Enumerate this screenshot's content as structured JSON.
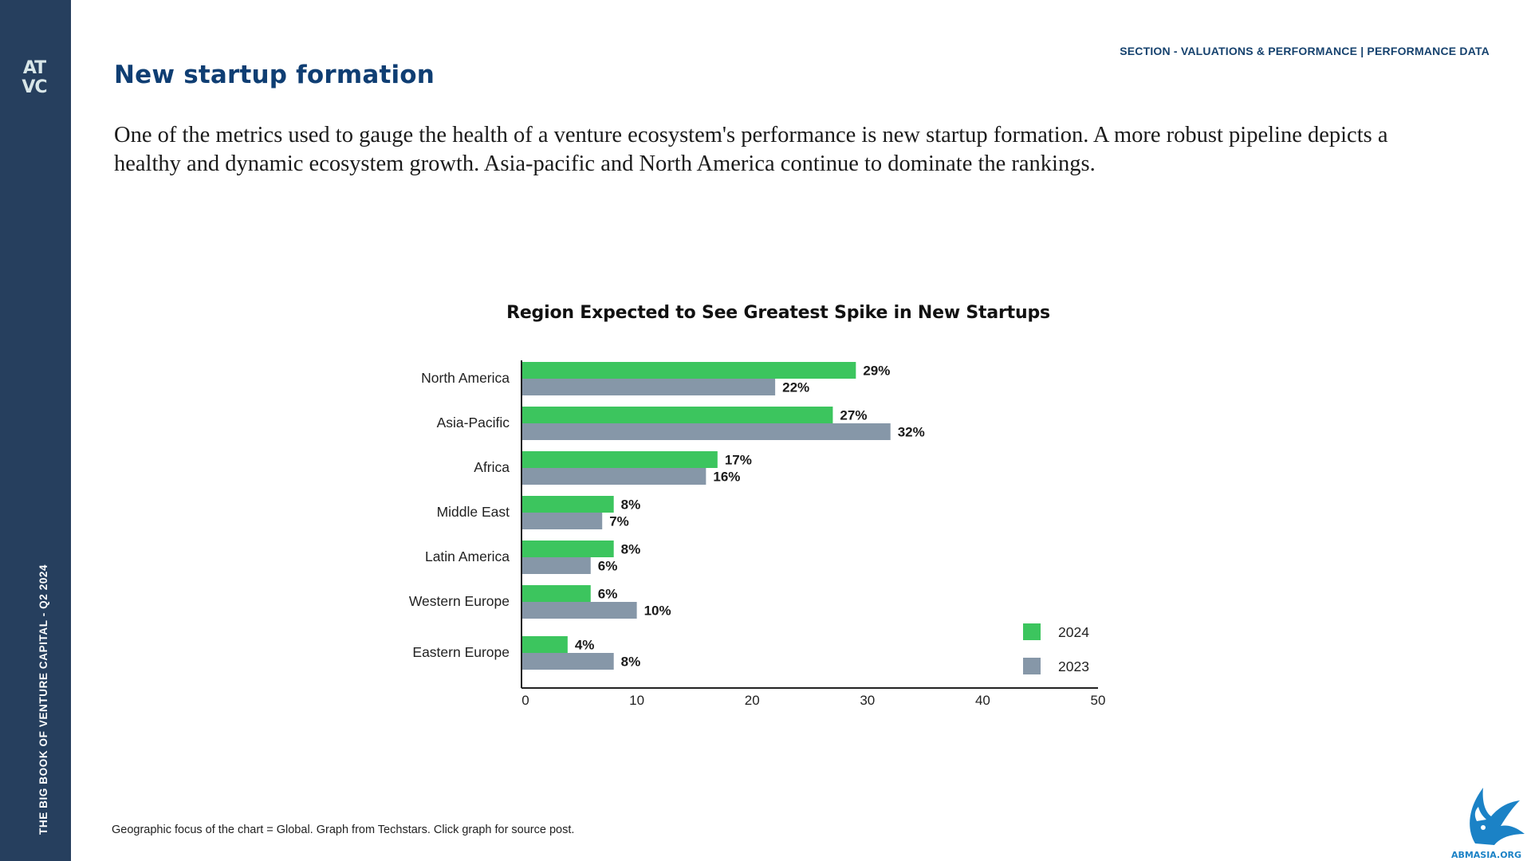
{
  "sidebar": {
    "logo_text": "AT\nVC",
    "vertical_title": "THE BIG BOOK OF VENTURE CAPITAL - Q2 2024"
  },
  "header": {
    "section": "SECTION - VALUATIONS & PERFORMANCE | PERFORMANCE DATA",
    "title": "New startup formation"
  },
  "intro": "One of the metrics used to gauge the health of a venture ecosystem's performance is new startup formation. A more robust pipeline depicts a healthy and dynamic ecosystem growth. Asia-pacific and North America continue to dominate the rankings.",
  "footnote": "Geographic focus of the chart = Global. Graph from Techstars. Click graph for source post.",
  "corner_logo": {
    "text": "ABMASIA.ORG",
    "color": "#1b82c6"
  },
  "colors": {
    "sidebar": "#263f5e",
    "series_2024": "#3cc55e",
    "series_2023": "#8697a8",
    "title": "#0f3e73"
  },
  "chart_data": {
    "type": "bar",
    "orientation": "horizontal",
    "title": "Region Expected to See Greatest Spike in New Startups",
    "categories": [
      "North America",
      "Asia-Pacific",
      "Africa",
      "Middle East",
      "Latin America",
      "Western Europe",
      "Eastern Europe"
    ],
    "series": [
      {
        "name": "2024",
        "color": "#3cc55e",
        "values": [
          29,
          27,
          17,
          8,
          8,
          6,
          4
        ],
        "labels": [
          "29%",
          "27%",
          "17%",
          "8%",
          "8%",
          "6%",
          "4%"
        ]
      },
      {
        "name": "2023",
        "color": "#8697a8",
        "values": [
          22,
          32,
          16,
          7,
          6,
          10,
          8
        ],
        "labels": [
          "22%",
          "32%",
          "16%",
          "7%",
          "6%",
          "10%",
          "8%"
        ]
      }
    ],
    "xlim": [
      0,
      50
    ],
    "xticks": [
      "0",
      "10",
      "20",
      "30",
      "40",
      "50"
    ],
    "xlabel": "",
    "ylabel": "",
    "grid": false,
    "legend": "bottom-right"
  }
}
